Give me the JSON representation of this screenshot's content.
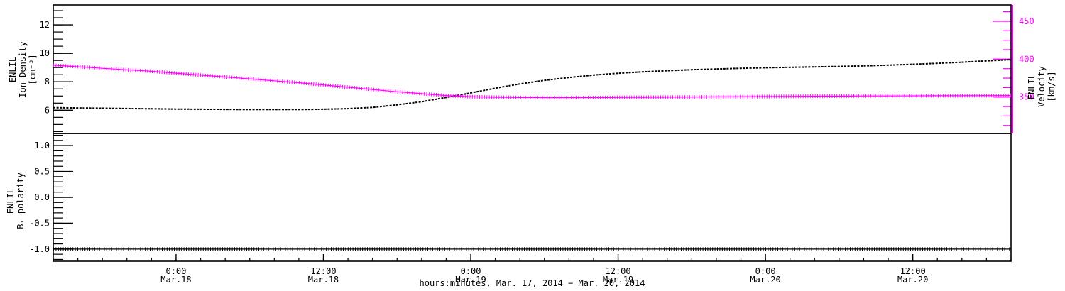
{
  "figure": {
    "background": "#ffffff",
    "frame_color": "#000000",
    "accent_color": "#ff00ff"
  },
  "chart_data": {
    "type": "line",
    "title": "",
    "xlabel": "hours:minutes, Mar. 17, 2014 − Mar. 20, 2014",
    "x_axis": {
      "range_hours": [
        14,
        92
      ],
      "minor_step_hours": 2,
      "major_ticks": [
        {
          "hour": 24,
          "time": "0:00",
          "date": "Mar.18"
        },
        {
          "hour": 36,
          "time": "12:00",
          "date": "Mar.18"
        },
        {
          "hour": 48,
          "time": "0:00",
          "date": "Mar.19"
        },
        {
          "hour": 60,
          "time": "12:00",
          "date": "Mar.19"
        },
        {
          "hour": 72,
          "time": "0:00",
          "date": "Mar.20"
        },
        {
          "hour": 84,
          "time": "12:00",
          "date": "Mar.20"
        }
      ]
    },
    "panels": [
      {
        "name": "density_velocity",
        "left_axis": {
          "title_lines": [
            "ENLIL",
            "Ion Density",
            "[cm⁻³]"
          ],
          "range": [
            4.37,
            13.4
          ],
          "minor_step": 0.5,
          "color": "#000000",
          "major_ticks": [
            {
              "v": 12,
              "label": "12"
            },
            {
              "v": 10,
              "label": "10"
            },
            {
              "v": 8,
              "label": "8"
            },
            {
              "v": 6,
              "label": "6"
            }
          ]
        },
        "right_axis": {
          "title_lines": [
            "ENLIL",
            "Velocity",
            "[km/s]"
          ],
          "range": [
            302,
            471.5
          ],
          "minor_step": 12.5,
          "color": "#ff00ff",
          "major_ticks": [
            {
              "v": 450,
              "label": "450"
            },
            {
              "v": 400,
              "label": "400"
            },
            {
              "v": 350,
              "label": "350"
            }
          ]
        },
        "series": [
          {
            "name": "ion_density",
            "axis": "left",
            "color": "#000000",
            "marker": "dash",
            "points": [
              [
                14,
                6.18
              ],
              [
                16,
                6.16
              ],
              [
                18,
                6.14
              ],
              [
                20,
                6.12
              ],
              [
                22,
                6.1
              ],
              [
                24,
                6.08
              ],
              [
                26,
                6.07
              ],
              [
                28,
                6.06
              ],
              [
                30,
                6.05
              ],
              [
                32,
                6.05
              ],
              [
                34,
                6.05
              ],
              [
                36,
                6.07
              ],
              [
                38,
                6.11
              ],
              [
                40,
                6.2
              ],
              [
                42,
                6.38
              ],
              [
                44,
                6.6
              ],
              [
                46,
                6.9
              ],
              [
                48,
                7.22
              ],
              [
                50,
                7.55
              ],
              [
                52,
                7.85
              ],
              [
                54,
                8.1
              ],
              [
                56,
                8.3
              ],
              [
                58,
                8.47
              ],
              [
                60,
                8.6
              ],
              [
                62,
                8.7
              ],
              [
                64,
                8.78
              ],
              [
                66,
                8.85
              ],
              [
                68,
                8.9
              ],
              [
                70,
                8.95
              ],
              [
                72,
                8.99
              ],
              [
                74,
                9.02
              ],
              [
                76,
                9.05
              ],
              [
                78,
                9.08
              ],
              [
                80,
                9.12
              ],
              [
                82,
                9.17
              ],
              [
                84,
                9.23
              ],
              [
                86,
                9.3
              ],
              [
                88,
                9.38
              ],
              [
                90,
                9.47
              ],
              [
                92,
                9.56
              ]
            ]
          },
          {
            "name": "velocity",
            "axis": "right",
            "color": "#ff00ff",
            "marker": "plus",
            "points": [
              [
                14,
                392
              ],
              [
                16,
                390
              ],
              [
                18,
                388
              ],
              [
                20,
                386
              ],
              [
                22,
                384
              ],
              [
                24,
                381.5
              ],
              [
                26,
                379
              ],
              [
                28,
                376.5
              ],
              [
                30,
                374
              ],
              [
                32,
                371.5
              ],
              [
                34,
                369
              ],
              [
                36,
                366
              ],
              [
                38,
                363
              ],
              [
                40,
                360
              ],
              [
                42,
                357
              ],
              [
                44,
                354.5
              ],
              [
                46,
                352
              ],
              [
                48,
                350.5
              ],
              [
                50,
                349.8
              ],
              [
                52,
                349.4
              ],
              [
                54,
                349.2
              ],
              [
                56,
                349.2
              ],
              [
                58,
                349.3
              ],
              [
                60,
                349.5
              ],
              [
                62,
                349.7
              ],
              [
                64,
                349.9
              ],
              [
                66,
                350.1
              ],
              [
                68,
                350.3
              ],
              [
                70,
                350.5
              ],
              [
                72,
                350.7
              ],
              [
                74,
                350.9
              ],
              [
                76,
                351.1
              ],
              [
                78,
                351.2
              ],
              [
                80,
                351.4
              ],
              [
                82,
                351.5
              ],
              [
                84,
                351.6
              ],
              [
                86,
                351.7
              ],
              [
                88,
                351.8
              ],
              [
                90,
                351.9
              ],
              [
                92,
                352
              ]
            ]
          }
        ]
      },
      {
        "name": "polarity",
        "left_axis": {
          "title_lines": [
            "ENLIL",
            "Bᵣ polarity"
          ],
          "range": [
            -1.235,
            1.235
          ],
          "minor_step": 0.1,
          "color": "#000000",
          "major_ticks": [
            {
              "v": 1.0,
              "label": "1.0"
            },
            {
              "v": 0.5,
              "label": "0.5"
            },
            {
              "v": 0.0,
              "label": "0.0"
            },
            {
              "v": -0.5,
              "label": "-0.5"
            },
            {
              "v": -1.0,
              "label": "-1.0"
            }
          ]
        },
        "series": [
          {
            "name": "br_polarity",
            "axis": "left",
            "color": "#000000",
            "marker": "plus",
            "points": [
              [
                14,
                -1
              ],
              [
                92,
                -1
              ]
            ]
          }
        ]
      }
    ]
  }
}
